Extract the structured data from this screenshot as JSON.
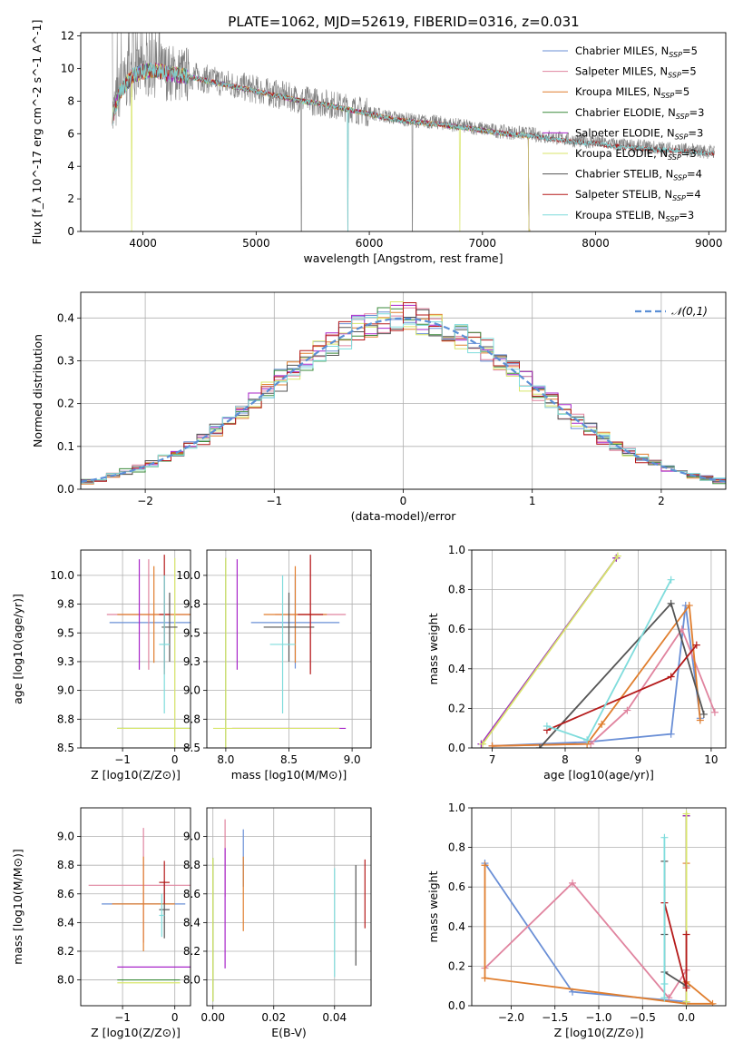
{
  "figure": {
    "title": "PLATE=1062, MJD=52619, FIBERID=0316, z=0.031"
  },
  "colors": {
    "Chabrier MILES": "#6a8fd6",
    "Salpeter MILES": "#e0849f",
    "Kroupa MILES": "#e07e2e",
    "Chabrier ELODIE": "#3a8a3a",
    "Salpeter ELODIE": "#a825c9",
    "Kroupa ELODIE": "#d8e66a",
    "Chabrier STELIB": "#555555",
    "Salpeter STELIB": "#b51a1a",
    "Kroupa STELIB": "#7fdcdc",
    "data": "#7f7f7f",
    "gauss": "#5b8fd6"
  },
  "chart_data": [
    {
      "id": "spectrum",
      "type": "line",
      "title": "PLATE=1062, MJD=52619, FIBERID=0316, z=0.031",
      "xlabel": "wavelength [Angstrom, rest frame]",
      "ylabel": "Flux [f_λ 10^-17 erg cm^-2 s^-1 A^-1]",
      "xlim": [
        3450,
        9150
      ],
      "ylim": [
        0,
        12.2
      ],
      "xticks": [
        4000,
        5000,
        6000,
        7000,
        8000,
        9000
      ],
      "yticks": [
        0,
        2,
        4,
        6,
        8,
        10,
        12
      ],
      "grid": false,
      "legend_position": "upper-right",
      "legend": [
        "Chabrier MILES, N_SSP=5",
        "Salpeter MILES, N_SSP=5",
        "Kroupa MILES, N_SSP=5",
        "Chabrier ELODIE, N_SSP=3",
        "Salpeter ELODIE, N_SSP=3",
        "Kroupa ELODIE, N_SSP=3",
        "Chabrier STELIB, N_SSP=4",
        "Salpeter STELIB, N_SSP=4",
        "Kroupa STELIB, N_SSP=3"
      ],
      "data_continuum": {
        "x": [
          3730,
          3800,
          3900,
          4000,
          4100,
          4200,
          4400,
          4600,
          4800,
          5000,
          5200,
          5400,
          5600,
          5800,
          6000,
          6200,
          6400,
          6600,
          6800,
          7000,
          7200,
          7400,
          7600,
          7800,
          8000,
          8200,
          8400,
          8600,
          8800,
          9000,
          9050
        ],
        "y": [
          7.0,
          8.8,
          9.6,
          9.9,
          10.0,
          9.8,
          9.6,
          9.3,
          9.0,
          8.7,
          8.4,
          8.1,
          7.9,
          7.6,
          7.3,
          7.0,
          6.8,
          6.7,
          6.5,
          6.3,
          6.1,
          6.0,
          5.8,
          5.6,
          5.5,
          5.3,
          5.2,
          5.1,
          5.0,
          4.9,
          4.9
        ]
      },
      "model_continuum": {
        "x": [
          3730,
          3800,
          3900,
          4000,
          4100,
          4200,
          4400,
          4600,
          4800,
          5000,
          5200,
          5400,
          5600,
          5800,
          6000,
          6200,
          6400,
          6600,
          6800,
          7000,
          7200,
          7400,
          7420
        ],
        "y": [
          7.0,
          8.6,
          9.5,
          9.8,
          9.9,
          9.7,
          9.5,
          9.2,
          8.9,
          8.6,
          8.3,
          8.0,
          7.8,
          7.5,
          7.2,
          6.9,
          6.7,
          6.6,
          6.4,
          6.2,
          6.0,
          5.9,
          0.0
        ]
      }
    },
    {
      "id": "residuals",
      "type": "histogram",
      "xlabel": "(data-model)/error",
      "ylabel": "Normed distribution",
      "xlim": [
        -2.5,
        2.5
      ],
      "ylim": [
        0,
        0.46
      ],
      "xticks": [
        -2,
        -1,
        0,
        1,
        2
      ],
      "yticks": [
        0.0,
        0.1,
        0.2,
        0.3,
        0.4
      ],
      "grid": true,
      "legend_position": "upper-right",
      "legend": [
        "𝒩(0,1)"
      ],
      "reference_curve": "standard normal N(0,1)"
    },
    {
      "id": "age-vs-Z",
      "type": "scatter",
      "xlabel": "Z [log10(Z/Z⊙)]",
      "ylabel": "age  [log10(age/yr)]",
      "xlim": [
        -1.8,
        0.3
      ],
      "ylim": [
        8.5,
        10.22
      ],
      "xticks": [
        -1,
        0
      ],
      "yticks": [
        8.5,
        8.75,
        9.0,
        9.25,
        9.5,
        9.75,
        10.0
      ],
      "grid": true,
      "errorbars": [
        {
          "model": "Chabrier MILES",
          "x": -0.2,
          "xerr": 1.05,
          "y": 9.59,
          "yerr": 0.4
        },
        {
          "model": "Salpeter MILES",
          "x": -0.5,
          "xerr": 0.8,
          "y": 9.66,
          "yerr": 0.48
        },
        {
          "model": "Kroupa MILES",
          "x": -0.4,
          "xerr": 0.7,
          "y": 9.66,
          "yerr": 0.42
        },
        {
          "model": "Chabrier ELODIE",
          "x": 0.0,
          "xerr": 1.1,
          "y": 8.67,
          "yerr": 0.0
        },
        {
          "model": "Salpeter ELODIE",
          "x": -0.68,
          "xerr": 0.0,
          "y": 9.66,
          "yerr": 0.48
        },
        {
          "model": "Kroupa ELODIE",
          "x": 0.0,
          "xerr": 1.1,
          "y": 8.67,
          "yerr": 1.48
        },
        {
          "model": "Chabrier STELIB",
          "x": -0.1,
          "xerr": 0.15,
          "y": 9.55,
          "yerr": 0.3
        },
        {
          "model": "Salpeter STELIB",
          "x": -0.2,
          "xerr": 0.1,
          "y": 9.66,
          "yerr": 0.52
        },
        {
          "model": "Kroupa STELIB",
          "x": -0.2,
          "xerr": 0.1,
          "y": 9.4,
          "yerr": 0.6
        }
      ]
    },
    {
      "id": "age-vs-mass",
      "type": "scatter",
      "xlabel": "mass [log10(M/M⊙)]",
      "ylabel": "",
      "xlim": [
        7.85,
        9.15
      ],
      "ylim": [
        8.5,
        10.22
      ],
      "xticks": [
        8.0,
        8.5,
        9.0
      ],
      "yticks": [
        8.5,
        8.75,
        9.0,
        9.25,
        9.5,
        9.75,
        10.0
      ],
      "grid": true,
      "errorbars": [
        {
          "model": "Chabrier MILES",
          "x": 8.55,
          "xerr": 0.35,
          "y": 9.59,
          "yerr": 0.4
        },
        {
          "model": "Salpeter MILES",
          "x": 8.67,
          "xerr": 0.28,
          "y": 9.66,
          "yerr": 0.48
        },
        {
          "model": "Kroupa MILES",
          "x": 8.55,
          "xerr": 0.25,
          "y": 9.66,
          "yerr": 0.42
        },
        {
          "model": "Chabrier ELODIE",
          "x": 8.0,
          "xerr": 0.0,
          "y": 8.67,
          "yerr": 1.48
        },
        {
          "model": "Salpeter ELODIE",
          "x": 8.09,
          "xerr": 0.0,
          "y": 9.66,
          "yerr": 0.48
        },
        {
          "model": "Kroupa ELODIE",
          "x": 8.0,
          "xerr": 0.0,
          "y": 8.67,
          "yerr": 1.48
        },
        {
          "model": "Chabrier STELIB",
          "x": 8.5,
          "xerr": 0.2,
          "y": 9.55,
          "yerr": 0.3
        },
        {
          "model": "Salpeter STELIB",
          "x": 8.67,
          "xerr": 0.1,
          "y": 9.66,
          "yerr": 0.52
        },
        {
          "model": "Kroupa STELIB",
          "x": 8.45,
          "xerr": 0.1,
          "y": 9.4,
          "yerr": 0.6
        },
        {
          "model": "Salpeter ELODIE",
          "x": 8.5,
          "xerr": 0.45,
          "y": 8.67,
          "yerr": 0.0
        },
        {
          "model": "Kroupa ELODIE",
          "x": 8.4,
          "xerr": 0.5,
          "y": 8.67,
          "yerr": 0.0
        }
      ]
    },
    {
      "id": "mass-weight-vs-age",
      "type": "line",
      "xlabel": "age  [log10(age/yr)]",
      "ylabel": "mass weight",
      "xlim": [
        6.72,
        10.2
      ],
      "ylim": [
        0,
        1.0
      ],
      "xticks": [
        7,
        8,
        9,
        10
      ],
      "yticks": [
        0.0,
        0.2,
        0.4,
        0.6,
        0.8,
        1.0
      ],
      "grid": true,
      "series": [
        {
          "name": "Chabrier MILES",
          "x": [
            7.0,
            8.3,
            9.45,
            9.65,
            9.85
          ],
          "y": [
            0.01,
            0.03,
            0.07,
            0.72,
            0.15
          ]
        },
        {
          "name": "Salpeter MILES",
          "x": [
            7.0,
            8.35,
            8.85,
            9.6,
            10.05
          ],
          "y": [
            0.01,
            0.02,
            0.19,
            0.6,
            0.18
          ]
        },
        {
          "name": "Kroupa MILES",
          "x": [
            7.0,
            8.3,
            8.5,
            9.7,
            9.85
          ],
          "y": [
            0.01,
            0.02,
            0.12,
            0.72,
            0.14
          ]
        },
        {
          "name": "Chabrier ELODIE",
          "x": [
            6.85,
            8.7
          ],
          "y": [
            0.02,
            0.96
          ]
        },
        {
          "name": "Salpeter ELODIE",
          "x": [
            6.85,
            8.7
          ],
          "y": [
            0.02,
            0.96
          ]
        },
        {
          "name": "Kroupa ELODIE",
          "x": [
            6.87,
            8.72
          ],
          "y": [
            0.02,
            0.97
          ]
        },
        {
          "name": "Chabrier STELIB",
          "x": [
            7.65,
            9.45,
            9.9
          ],
          "y": [
            0.0,
            0.73,
            0.17
          ]
        },
        {
          "name": "Salpeter STELIB",
          "x": [
            7.75,
            9.45,
            9.8
          ],
          "y": [
            0.09,
            0.36,
            0.52
          ]
        },
        {
          "name": "Kroupa STELIB",
          "x": [
            7.75,
            8.3,
            9.45
          ],
          "y": [
            0.11,
            0.04,
            0.85
          ]
        }
      ]
    },
    {
      "id": "mass-vs-Z",
      "type": "scatter",
      "xlabel": "Z [log10(Z/Z⊙)]",
      "ylabel": "mass [log10(M/M⊙)]",
      "xlim": [
        -1.8,
        0.3
      ],
      "ylim": [
        7.82,
        9.2
      ],
      "xticks": [
        -1,
        0
      ],
      "yticks": [
        8.0,
        8.2,
        8.4,
        8.6,
        8.8,
        9.0
      ],
      "grid": true,
      "errorbars": [
        {
          "model": "Chabrier MILES",
          "x": -0.6,
          "xerr": 0.8,
          "y": 8.53,
          "yerr": 0.0
        },
        {
          "model": "Salpeter MILES",
          "x": -0.6,
          "xerr": 1.05,
          "y": 8.66,
          "yerr": 0.4
        },
        {
          "model": "Kroupa MILES",
          "x": -0.6,
          "xerr": 0.6,
          "y": 8.53,
          "yerr": 0.33
        },
        {
          "model": "Chabrier ELODIE",
          "x": -0.5,
          "xerr": 0.6,
          "y": 8.0,
          "yerr": 0.0
        },
        {
          "model": "Salpeter ELODIE",
          "x": -0.4,
          "xerr": 0.7,
          "y": 8.09,
          "yerr": 0.0
        },
        {
          "model": "Kroupa ELODIE",
          "x": -0.5,
          "xerr": 0.6,
          "y": 7.98,
          "yerr": 0.0
        },
        {
          "model": "Chabrier STELIB",
          "x": -0.2,
          "xerr": 0.1,
          "y": 8.49,
          "yerr": 0.2
        },
        {
          "model": "Salpeter STELIB",
          "x": -0.2,
          "xerr": 0.1,
          "y": 8.68,
          "yerr": 0.15
        },
        {
          "model": "Kroupa STELIB",
          "x": -0.25,
          "xerr": 0.05,
          "y": 8.45,
          "yerr": 0.15
        }
      ]
    },
    {
      "id": "mass-vs-EBV",
      "type": "scatter",
      "xlabel": "E(B-V)",
      "ylabel": "",
      "xlim": [
        -0.002,
        0.052
      ],
      "ylim": [
        7.82,
        9.2
      ],
      "xticks": [
        0.0,
        0.02,
        0.04
      ],
      "yticks": [
        8.0,
        8.2,
        8.4,
        8.6,
        8.8,
        9.0
      ],
      "grid": true,
      "errorbars": [
        {
          "model": "Chabrier MILES",
          "x": 0.01,
          "xerr": 0.0,
          "y": 8.85,
          "yerr": 0.2
        },
        {
          "model": "Salpeter MILES",
          "x": 0.004,
          "xerr": 0.0,
          "y": 8.85,
          "yerr": 0.27
        },
        {
          "model": "Kroupa MILES",
          "x": 0.01,
          "xerr": 0.0,
          "y": 8.6,
          "yerr": 0.26
        },
        {
          "model": "Chabrier ELODIE",
          "x": 0.0,
          "xerr": 0.0,
          "y": 8.35,
          "yerr": 0.5
        },
        {
          "model": "Salpeter ELODIE",
          "x": 0.004,
          "xerr": 0.0,
          "y": 8.5,
          "yerr": 0.42
        },
        {
          "model": "Kroupa ELODIE",
          "x": 0.0,
          "xerr": 0.0,
          "y": 8.35,
          "yerr": 0.5
        },
        {
          "model": "Chabrier STELIB",
          "x": 0.047,
          "xerr": 0.0,
          "y": 8.45,
          "yerr": 0.35
        },
        {
          "model": "Salpeter STELIB",
          "x": 0.05,
          "xerr": 0.0,
          "y": 8.6,
          "yerr": 0.24
        },
        {
          "model": "Kroupa STELIB",
          "x": 0.04,
          "xerr": 0.0,
          "y": 8.4,
          "yerr": 0.38
        }
      ]
    },
    {
      "id": "mass-weight-vs-Z",
      "type": "line",
      "xlabel": "Z [log10(Z/Z⊙)]",
      "ylabel": "mass weight",
      "xlim": [
        -2.45,
        0.45
      ],
      "ylim": [
        0,
        1.0
      ],
      "xticks": [
        -2.0,
        -1.5,
        -1.0,
        -0.5,
        0.0
      ],
      "yticks": [
        0.0,
        0.2,
        0.4,
        0.6,
        0.8,
        1.0
      ],
      "grid": true,
      "series": [
        {
          "name": "Chabrier MILES",
          "x": [
            -2.3,
            -1.3,
            0.0
          ],
          "y": [
            0.72,
            0.07,
            0.02
          ]
        },
        {
          "name": "Salpeter MILES",
          "x": [
            -2.3,
            -1.3,
            -0.2,
            0.0
          ],
          "y": [
            0.19,
            0.62,
            0.04,
            0.18
          ]
        },
        {
          "name": "Kroupa MILES",
          "x": [
            -2.3,
            -2.3,
            0.0,
            0.3,
            0.0,
            0.0
          ],
          "y": [
            0.71,
            0.14,
            0.01,
            0.01,
            0.12,
            0.72
          ]
        },
        {
          "name": "Chabrier ELODIE",
          "x": [
            0.0,
            0.0
          ],
          "y": [
            0.02,
            0.96
          ]
        },
        {
          "name": "Salpeter ELODIE",
          "x": [
            0.0,
            0.0
          ],
          "y": [
            0.02,
            0.96
          ]
        },
        {
          "name": "Kroupa ELODIE",
          "x": [
            0.0,
            0.0
          ],
          "y": [
            0.02,
            0.97
          ]
        },
        {
          "name": "Chabrier STELIB",
          "x": [
            -0.25,
            -0.25,
            -0.25,
            0.0
          ],
          "y": [
            0.73,
            0.36,
            0.17,
            0.1
          ]
        },
        {
          "name": "Salpeter STELIB",
          "x": [
            -0.25,
            0.0,
            0.0
          ],
          "y": [
            0.52,
            0.09,
            0.36
          ]
        },
        {
          "name": "Kroupa STELIB",
          "x": [
            -0.25,
            -0.25,
            -0.25
          ],
          "y": [
            0.85,
            0.11,
            0.04
          ]
        }
      ]
    }
  ]
}
